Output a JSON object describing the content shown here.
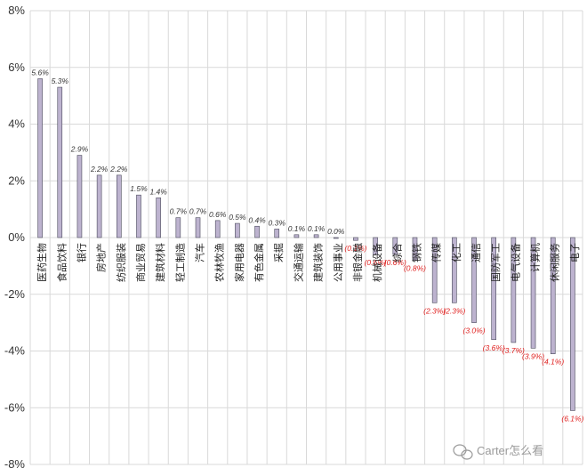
{
  "chart_data": {
    "type": "bar",
    "categories": [
      "医药生物",
      "食品饮料",
      "银行",
      "房地产",
      "纺织服装",
      "商业贸易",
      "建筑材料",
      "轻工制造",
      "汽车",
      "农林牧渔",
      "家用电器",
      "有色金属",
      "采掘",
      "交通运输",
      "建筑装饰",
      "公用事业",
      "非银金融",
      "机械设备",
      "综合",
      "钢铁",
      "传媒",
      "化工",
      "通信",
      "国防军工",
      "电气设备",
      "计算机",
      "休闲服务",
      "电子"
    ],
    "values": [
      5.6,
      5.3,
      2.9,
      2.2,
      2.2,
      1.5,
      1.4,
      0.7,
      0.7,
      0.6,
      0.5,
      0.4,
      0.3,
      0.1,
      0.1,
      0.0,
      -0.1,
      -0.6,
      -0.6,
      -0.8,
      -2.3,
      -2.3,
      -3.0,
      -3.6,
      -3.7,
      -3.9,
      -4.1,
      -6.1
    ],
    "data_labels": [
      "5.6%",
      "5.3%",
      "2.9%",
      "2.2%",
      "2.2%",
      "1.5%",
      "1.4%",
      "0.7%",
      "0.7%",
      "0.6%",
      "0.5%",
      "0.4%",
      "0.3%",
      "0.1%",
      "0.1%",
      "0.0%",
      "(0.1%)",
      "(0.6%)",
      "(0.6%)",
      "(0.8%)",
      "(2.3%)",
      "(2.3%)",
      "(3.0%)",
      "(3.6%)",
      "(3.7%)",
      "(3.9%)",
      "(4.1%)",
      "(6.1%)"
    ],
    "ylim": [
      -8,
      8
    ],
    "yticks": [
      -8,
      -6,
      -4,
      -2,
      0,
      2,
      4,
      6,
      8
    ],
    "ytick_labels": [
      "-8%",
      "-6%",
      "-4%",
      "-2%",
      "0%",
      "2%",
      "4%",
      "6%",
      "8%"
    ],
    "grid": true,
    "colors": {
      "bar_fill": "#bdb3cf",
      "bar_stroke": "#4a4a5c",
      "positive_label": "#333333",
      "negative_label": "#e0201f",
      "grid": "#d9d9d9"
    }
  },
  "watermark": {
    "icon": "wechat-icon",
    "text": "Carter怎么看"
  }
}
